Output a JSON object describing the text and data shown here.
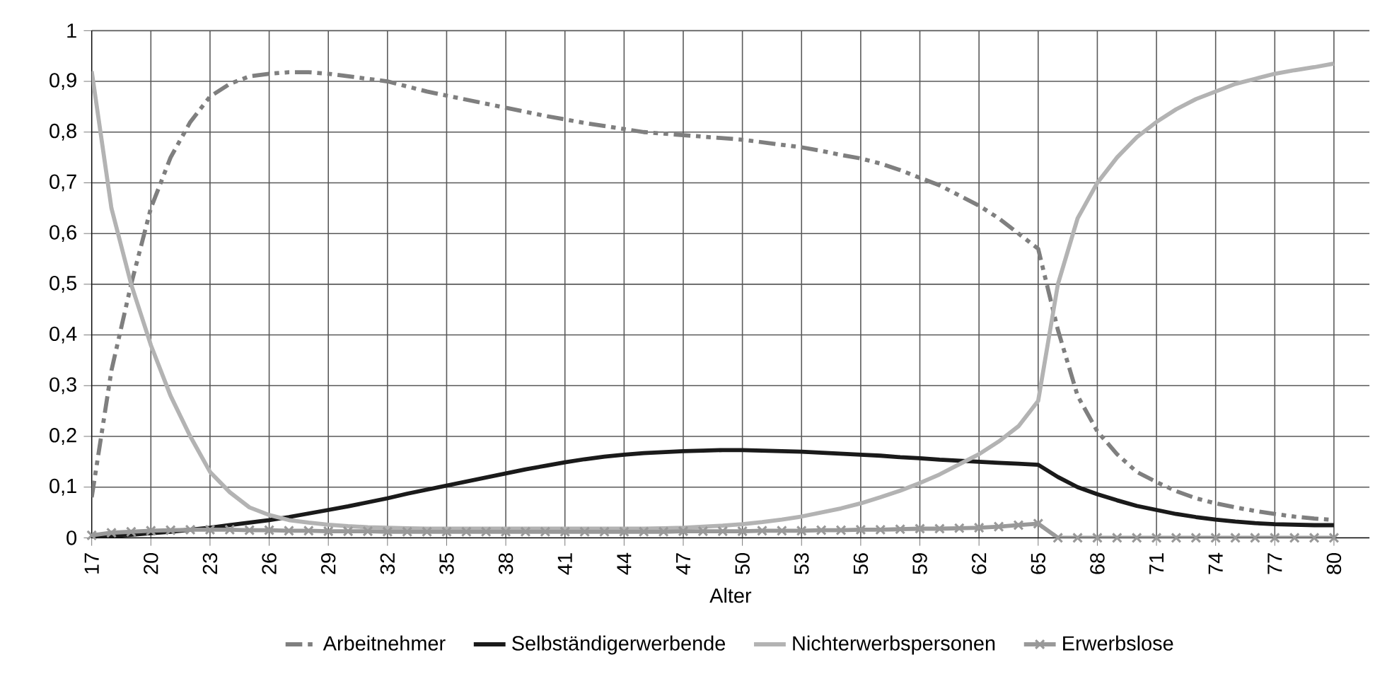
{
  "chart_data": {
    "type": "line",
    "xlabel": "Alter",
    "x": [
      17,
      18,
      19,
      20,
      21,
      22,
      23,
      24,
      25,
      26,
      27,
      28,
      29,
      30,
      31,
      32,
      33,
      34,
      35,
      36,
      37,
      38,
      39,
      40,
      41,
      42,
      43,
      44,
      45,
      46,
      47,
      48,
      49,
      50,
      51,
      52,
      53,
      54,
      55,
      56,
      57,
      58,
      59,
      60,
      61,
      62,
      63,
      64,
      65,
      66,
      67,
      68,
      69,
      70,
      71,
      72,
      73,
      74,
      75,
      76,
      77,
      78,
      79,
      80
    ],
    "xlim": [
      17,
      81.8
    ],
    "xticks": [
      17,
      20,
      23,
      26,
      29,
      32,
      35,
      38,
      41,
      44,
      47,
      50,
      53,
      56,
      59,
      62,
      65,
      68,
      71,
      74,
      77,
      80
    ],
    "ylim": [
      0,
      1
    ],
    "yticks": [
      0,
      {
        "value": 0.1,
        "label": "0,1"
      },
      {
        "value": 0.2,
        "label": "0,2"
      },
      {
        "value": 0.3,
        "label": "0,3"
      },
      {
        "value": 0.4,
        "label": "0,4"
      },
      {
        "value": 0.5,
        "label": "0,5"
      },
      {
        "value": 0.6,
        "label": "0,6"
      },
      {
        "value": 0.7,
        "label": "0,7"
      },
      {
        "value": 0.8,
        "label": "0,8"
      },
      {
        "value": 0.9,
        "label": "0,9"
      },
      1
    ],
    "grid": true,
    "legend": "bottom",
    "series": [
      {
        "name": "Arbeitnehmer",
        "color": "#7f7f7f",
        "line_style": "dashdot",
        "marker": "none",
        "values": [
          0.08,
          0.33,
          0.5,
          0.65,
          0.75,
          0.82,
          0.87,
          0.895,
          0.91,
          0.915,
          0.918,
          0.918,
          0.915,
          0.91,
          0.905,
          0.9,
          0.89,
          0.88,
          0.872,
          0.864,
          0.856,
          0.848,
          0.84,
          0.832,
          0.825,
          0.818,
          0.812,
          0.806,
          0.8,
          0.797,
          0.794,
          0.791,
          0.788,
          0.785,
          0.78,
          0.775,
          0.77,
          0.763,
          0.755,
          0.748,
          0.738,
          0.725,
          0.71,
          0.695,
          0.675,
          0.655,
          0.63,
          0.6,
          0.57,
          0.41,
          0.28,
          0.21,
          0.165,
          0.13,
          0.11,
          0.092,
          0.078,
          0.068,
          0.06,
          0.053,
          0.047,
          0.042,
          0.038,
          0.035
        ]
      },
      {
        "name": "Selbständigerwerbende",
        "color": "#1a1a1a",
        "line_style": "solid",
        "marker": "none",
        "values": [
          0,
          0.003,
          0.006,
          0.009,
          0.012,
          0.016,
          0.02,
          0.025,
          0.03,
          0.035,
          0.041,
          0.048,
          0.055,
          0.062,
          0.07,
          0.078,
          0.087,
          0.095,
          0.103,
          0.111,
          0.119,
          0.127,
          0.135,
          0.142,
          0.149,
          0.155,
          0.16,
          0.164,
          0.167,
          0.169,
          0.171,
          0.172,
          0.173,
          0.173,
          0.172,
          0.171,
          0.17,
          0.168,
          0.166,
          0.164,
          0.162,
          0.159,
          0.157,
          0.154,
          0.152,
          0.15,
          0.148,
          0.146,
          0.144,
          0.12,
          0.1,
          0.086,
          0.074,
          0.063,
          0.055,
          0.047,
          0.041,
          0.036,
          0.032,
          0.029,
          0.027,
          0.026,
          0.025,
          0.025
        ]
      },
      {
        "name": "Nichterwerbspersonen",
        "color": "#b3b3b3",
        "line_style": "solid",
        "marker": "none",
        "values": [
          0.92,
          0.65,
          0.5,
          0.38,
          0.28,
          0.2,
          0.13,
          0.09,
          0.06,
          0.045,
          0.035,
          0.03,
          0.026,
          0.023,
          0.021,
          0.02,
          0.019,
          0.018,
          0.018,
          0.018,
          0.018,
          0.018,
          0.018,
          0.018,
          0.018,
          0.018,
          0.018,
          0.018,
          0.018,
          0.019,
          0.02,
          0.022,
          0.024,
          0.027,
          0.031,
          0.036,
          0.042,
          0.05,
          0.058,
          0.068,
          0.08,
          0.093,
          0.108,
          0.125,
          0.145,
          0.165,
          0.19,
          0.22,
          0.27,
          0.5,
          0.63,
          0.7,
          0.75,
          0.79,
          0.82,
          0.845,
          0.865,
          0.88,
          0.895,
          0.905,
          0.915,
          0.922,
          0.928,
          0.935
        ]
      },
      {
        "name": "Erwerbslose",
        "color": "#999999",
        "line_style": "solid",
        "marker": "cross",
        "values": [
          0.005,
          0.01,
          0.012,
          0.014,
          0.015,
          0.016,
          0.016,
          0.016,
          0.015,
          0.015,
          0.014,
          0.014,
          0.013,
          0.013,
          0.013,
          0.012,
          0.012,
          0.012,
          0.012,
          0.012,
          0.012,
          0.012,
          0.012,
          0.012,
          0.012,
          0.012,
          0.012,
          0.012,
          0.012,
          0.012,
          0.013,
          0.013,
          0.013,
          0.013,
          0.014,
          0.014,
          0.014,
          0.015,
          0.015,
          0.016,
          0.016,
          0.017,
          0.018,
          0.018,
          0.019,
          0.02,
          0.022,
          0.025,
          0.028,
          0,
          0,
          0,
          0,
          0,
          0,
          0,
          0,
          0,
          0,
          0,
          0,
          0,
          0,
          0
        ]
      }
    ]
  }
}
